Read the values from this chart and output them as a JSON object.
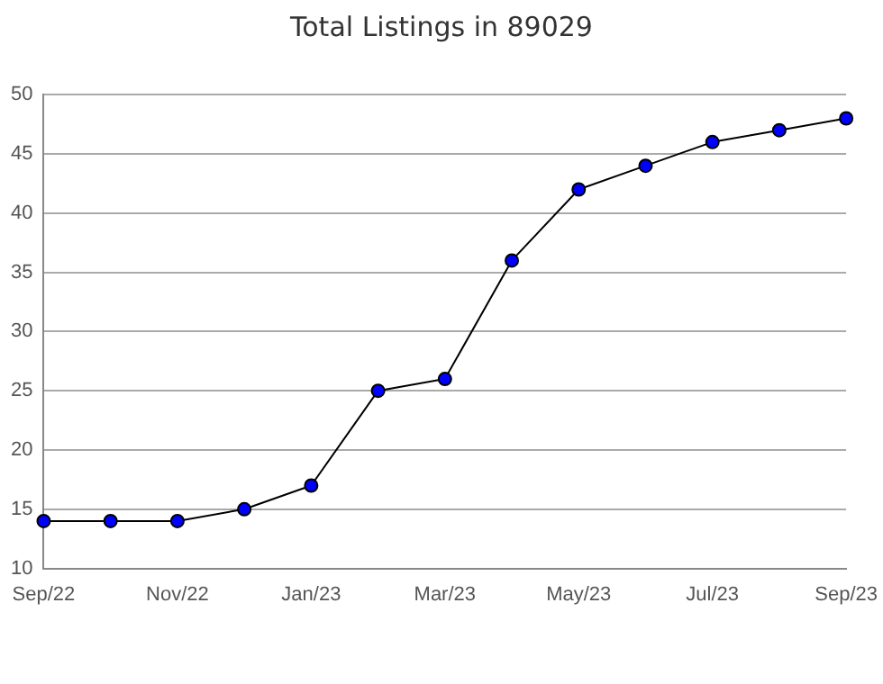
{
  "chart_data": {
    "type": "line",
    "title": "Total Listings in 89029",
    "categories": [
      "Sep/22",
      null,
      "Nov/22",
      null,
      "Jan/23",
      null,
      "Mar/23",
      null,
      "May/23",
      null,
      "Jul/23",
      null,
      "Sep/23"
    ],
    "series": [
      {
        "color": "#0000ff",
        "values": [
          14,
          14,
          14,
          15,
          17,
          25,
          26,
          36,
          42,
          44,
          46,
          47,
          48
        ]
      }
    ],
    "ylim": [
      10,
      50
    ],
    "yticks": [
      10,
      15,
      20,
      25,
      30,
      35,
      40,
      45,
      50
    ],
    "grid": "y",
    "legend": false,
    "marker": "circle",
    "line_style": "solid"
  }
}
